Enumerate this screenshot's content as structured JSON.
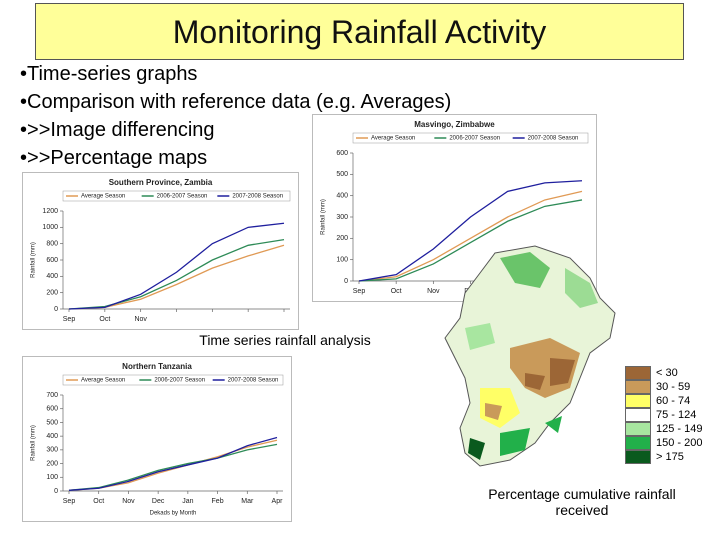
{
  "slide": {
    "title": "Monitoring Rainfall Activity",
    "bullets": [
      "Time-series graphs",
      "Comparison with reference data (e.g. Averages)",
      ">>Image differencing",
      ">>Percentage maps"
    ],
    "caption_left": "Time series rainfall analysis",
    "caption_right": "Percentage cumulative rainfall received"
  },
  "map_legend": [
    {
      "label": "< 30",
      "color": "#9c6636"
    },
    {
      "label": "30 - 59",
      "color": "#c99a5a"
    },
    {
      "label": "60 - 74",
      "color": "#ffff66"
    },
    {
      "label": "75 - 124",
      "color": "#ffffff"
    },
    {
      "label": "125 - 149",
      "color": "#a8e6a0"
    },
    {
      "label": "150 - 200",
      "color": "#22b04a"
    },
    {
      "label": "> 175",
      "color": "#0a5a1e"
    }
  ],
  "chart_data": [
    {
      "type": "line",
      "title": "Masvingo, Zimbabwe",
      "y_label": "Rainfall (mm)",
      "categories": [
        "Sep",
        "Oct",
        "Nov",
        "Dec",
        null,
        null,
        null
      ],
      "series": [
        {
          "name": "Average Season",
          "color": "#e09a55",
          "values": [
            0,
            20,
            100,
            200,
            300,
            380,
            420
          ]
        },
        {
          "name": "2006-2007 Season",
          "color": "#2e8b57",
          "values": [
            0,
            10,
            80,
            180,
            280,
            350,
            380
          ]
        },
        {
          "name": "2007-2008 Season",
          "color": "#1f1f9e",
          "values": [
            0,
            30,
            150,
            300,
            420,
            460,
            470
          ]
        }
      ],
      "ylim": [
        0,
        600
      ],
      "yticks": [
        0,
        100,
        200,
        300,
        400,
        500,
        600
      ]
    },
    {
      "type": "line",
      "title": "Southern Province, Zambia",
      "y_label": "Rainfall (mm)",
      "categories": [
        "Sep",
        "Oct",
        "Nov",
        null,
        null,
        null,
        null
      ],
      "series": [
        {
          "name": "Average Season",
          "color": "#e09a55",
          "values": [
            0,
            20,
            120,
            300,
            500,
            650,
            780
          ]
        },
        {
          "name": "2006-2007 Season",
          "color": "#2e8b57",
          "values": [
            0,
            30,
            150,
            350,
            600,
            780,
            850
          ]
        },
        {
          "name": "2007-2008 Season",
          "color": "#1f1f9e",
          "values": [
            0,
            20,
            180,
            450,
            800,
            1000,
            1050
          ]
        }
      ],
      "ylim": [
        0,
        1200
      ],
      "yticks": [
        0,
        200,
        400,
        600,
        800,
        1000,
        1200
      ]
    },
    {
      "type": "line",
      "title": "Northern Tanzania",
      "y_label": "Rainfall (mm)",
      "x_label": "Dekads by Month",
      "categories": [
        "Sep",
        "Oct",
        "Nov",
        "Dec",
        "Jan",
        "Feb",
        "Mar",
        "Apr"
      ],
      "series": [
        {
          "name": "Average Season",
          "color": "#e09a55",
          "values": [
            5,
            20,
            60,
            130,
            190,
            250,
            320,
            370
          ]
        },
        {
          "name": "2006-2007 Season",
          "color": "#2e8b57",
          "values": [
            5,
            25,
            80,
            150,
            200,
            240,
            300,
            340
          ]
        },
        {
          "name": "2007-2008 Season",
          "color": "#1f1f9e",
          "values": [
            5,
            20,
            70,
            140,
            190,
            240,
            330,
            390
          ]
        }
      ],
      "ylim": [
        0,
        700
      ],
      "yticks": [
        0,
        100,
        200,
        300,
        400,
        500,
        600,
        700
      ]
    }
  ]
}
